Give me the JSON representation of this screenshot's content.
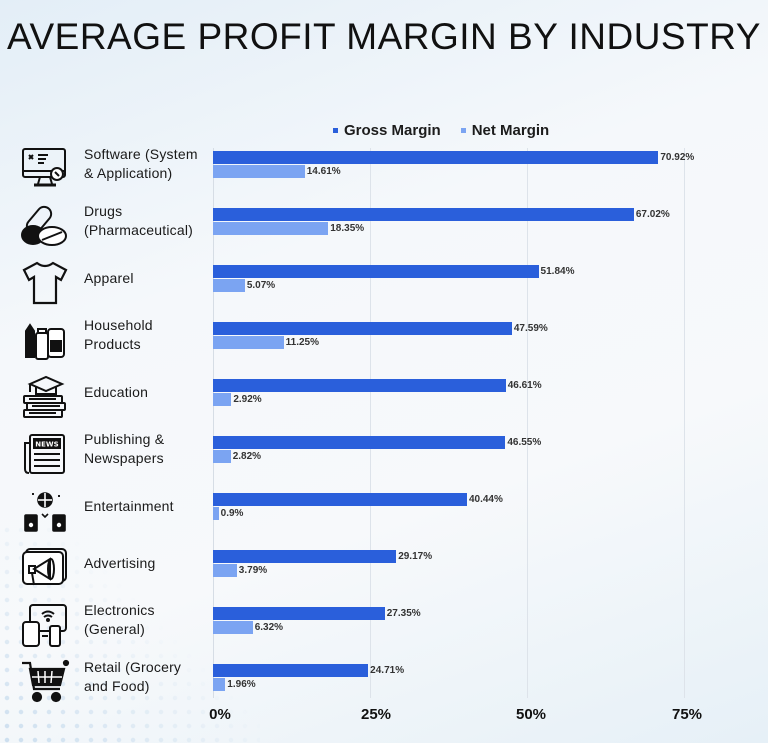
{
  "title": "AVERAGE PROFIT MARGIN BY INDUSTRY",
  "legend": [
    {
      "label": "Gross Margin",
      "color": "#2a5fdb"
    },
    {
      "label": "Net Margin",
      "color": "#7ba4f2"
    }
  ],
  "axis": {
    "ticks": [
      "0%",
      "25%",
      "50%",
      "75%"
    ]
  },
  "rows": [
    {
      "label": "Software (System\n& Application)",
      "icon": "computer-settings-icon",
      "gross": "70.92%",
      "net": "14.61%"
    },
    {
      "label": "Drugs\n(Pharmaceutical)",
      "icon": "pills-icon",
      "gross": "67.02%",
      "net": "18.35%"
    },
    {
      "label": "Apparel",
      "icon": "tshirt-icon",
      "gross": "51.84%",
      "net": "5.07%"
    },
    {
      "label": "Household\nProducts",
      "icon": "cleaning-bottles-icon",
      "gross": "47.59%",
      "net": "11.25%"
    },
    {
      "label": "Education",
      "icon": "graduation-cap-books-icon",
      "gross": "46.61%",
      "net": "2.92%"
    },
    {
      "label": "Publishing &\nNewspapers",
      "icon": "newspaper-icon",
      "gross": "46.55%",
      "net": "2.82%"
    },
    {
      "label": "Entertainment",
      "icon": "disco-speakers-icon",
      "gross": "40.44%",
      "net": "0.9%"
    },
    {
      "label": "Advertising",
      "icon": "megaphone-icon",
      "gross": "29.17%",
      "net": "3.79%"
    },
    {
      "label": "Electronics\n(General)",
      "icon": "devices-icon",
      "gross": "27.35%",
      "net": "6.32%"
    },
    {
      "label": "Retail (Grocery\nand Food)",
      "icon": "shopping-cart-icon",
      "gross": "24.71%",
      "net": "1.96%"
    }
  ],
  "chart_data": {
    "type": "bar",
    "orientation": "horizontal",
    "title": "AVERAGE PROFIT MARGIN BY INDUSTRY",
    "categories": [
      "Software (System & Application)",
      "Drugs (Pharmaceutical)",
      "Apparel",
      "Household Products",
      "Education",
      "Publishing & Newspapers",
      "Entertainment",
      "Advertising",
      "Electronics (General)",
      "Retail (Grocery and Food)"
    ],
    "series": [
      {
        "name": "Gross Margin",
        "color": "#2a5fdb",
        "values": [
          70.92,
          67.02,
          51.84,
          47.59,
          46.61,
          46.55,
          40.44,
          29.17,
          27.35,
          24.71
        ]
      },
      {
        "name": "Net Margin",
        "color": "#7ba4f2",
        "values": [
          14.61,
          18.35,
          5.07,
          11.25,
          2.92,
          2.82,
          0.9,
          3.79,
          6.32,
          1.96
        ]
      }
    ],
    "xlabel": "",
    "ylabel": "",
    "xlim": [
      0,
      75
    ],
    "xticks": [
      "0%",
      "25%",
      "50%",
      "75%"
    ],
    "grid": true,
    "legend_position": "top",
    "data_labels": true
  }
}
